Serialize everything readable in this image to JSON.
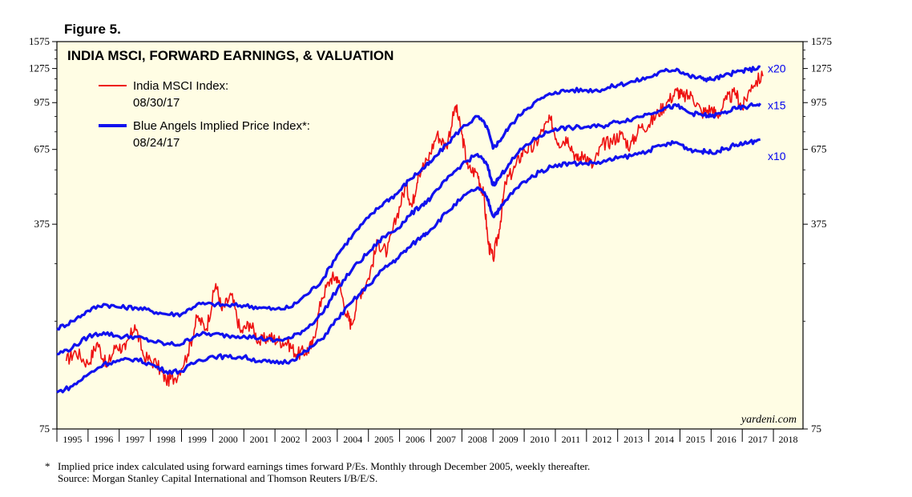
{
  "figure_label": "Figure 5.",
  "footnote_star": "*",
  "footnote_line1": "Implied price index calculated using forward earnings times forward P/Es. Monthly through December 2005, weekly thereafter.",
  "footnote_line2": "Source: Morgan Stanley Capital International and Thomson Reuters I/B/E/S.",
  "brand": "yardeni.com",
  "colors": {
    "background": "#fffde4",
    "india": "#ee1111",
    "blue": "#1111ee"
  },
  "chart_data": {
    "type": "line",
    "title": "INDIA MSCI, FORWARD EARNINGS, & VALUATION",
    "y_scale": "log",
    "ylim": [
      75,
      1575
    ],
    "y_ticks": [
      "75",
      "375",
      "675",
      "975",
      "1275",
      "1575"
    ],
    "y_tick_values": [
      75,
      375,
      675,
      975,
      1275,
      1575
    ],
    "xlim": [
      1995,
      2018.95
    ],
    "x_tick_labels": [
      "1995",
      "1996",
      "1997",
      "1998",
      "1999",
      "2000",
      "2001",
      "2002",
      "2003",
      "2004",
      "2005",
      "2006",
      "2007",
      "2008",
      "2009",
      "2010",
      "2011",
      "2012",
      "2013",
      "2014",
      "2015",
      "2016",
      "2017",
      "2018"
    ],
    "legend": [
      {
        "label": "India MSCI Index:",
        "date": "08/30/17",
        "color": "#ee1111"
      },
      {
        "label": "Blue Angels Implied Price Index*:",
        "date": "08/24/17",
        "color": "#1111ee"
      }
    ],
    "multiplier_labels": [
      {
        "label": "x20",
        "value": 1275
      },
      {
        "label": "x15",
        "value": 955
      },
      {
        "label": "x10",
        "value": 640
      }
    ],
    "series": [
      {
        "name": "India MSCI Index",
        "color": "#ee1111",
        "x": [
          1995.3,
          1995.6,
          1996.0,
          1996.3,
          1996.6,
          1996.9,
          1997.2,
          1997.5,
          1997.8,
          1998.2,
          1998.5,
          1998.8,
          1999.2,
          1999.5,
          1999.8,
          2000.1,
          2000.3,
          2000.6,
          2000.9,
          2001.2,
          2001.5,
          2001.8,
          2002.1,
          2002.4,
          2002.7,
          2003.0,
          2003.2,
          2003.5,
          2003.8,
          2004.0,
          2004.3,
          2004.45,
          2004.7,
          2005.0,
          2005.3,
          2005.6,
          2005.9,
          2006.2,
          2006.4,
          2006.6,
          2006.9,
          2007.2,
          2007.5,
          2007.8,
          2008.0,
          2008.2,
          2008.5,
          2008.7,
          2008.85,
          2009.0,
          2009.2,
          2009.4,
          2009.7,
          2010.0,
          2010.3,
          2010.6,
          2010.85,
          2011.1,
          2011.4,
          2011.7,
          2011.95,
          2012.2,
          2012.5,
          2012.8,
          2013.1,
          2013.4,
          2013.7,
          2014.0,
          2014.3,
          2014.6,
          2014.9,
          2015.1,
          2015.4,
          2015.7,
          2016.0,
          2016.2,
          2016.5,
          2016.8,
          2017.0,
          2017.3,
          2017.66
        ],
        "values": [
          128,
          138,
          125,
          148,
          122,
          145,
          140,
          170,
          132,
          125,
          110,
          112,
          135,
          180,
          165,
          235,
          190,
          215,
          160,
          172,
          148,
          155,
          150,
          148,
          135,
          138,
          145,
          210,
          245,
          248,
          185,
          170,
          215,
          245,
          325,
          300,
          395,
          510,
          430,
          560,
          620,
          760,
          690,
          950,
          760,
          580,
          560,
          470,
          320,
          285,
          360,
          520,
          585,
          675,
          680,
          790,
          850,
          710,
          740,
          620,
          650,
          590,
          700,
          720,
          760,
          690,
          800,
          820,
          900,
          980,
          1070,
          1020,
          1030,
          900,
          930,
          880,
          1000,
          1050,
          930,
          1120,
          1200
        ]
      },
      {
        "name": "Blue Angels Implied Price Index x20",
        "color": "#1111ee",
        "x": [
          1995.0,
          1995.5,
          1996.0,
          1996.5,
          1997.0,
          1997.5,
          1998.0,
          1998.5,
          1999.0,
          1999.5,
          2000.0,
          2000.5,
          2001.0,
          2001.5,
          2002.0,
          2002.5,
          2003.0,
          2003.5,
          2004.0,
          2004.5,
          2005.0,
          2005.5,
          2005.9,
          2006.3,
          2006.7,
          2007.0,
          2007.5,
          2008.0,
          2008.5,
          2008.8,
          2009.0,
          2009.2,
          2009.5,
          2010.0,
          2010.5,
          2011.0,
          2011.5,
          2012.0,
          2012.5,
          2013.0,
          2013.5,
          2014.0,
          2014.5,
          2014.9,
          2015.3,
          2015.7,
          2016.0,
          2016.4,
          2016.8,
          2017.2,
          2017.58
        ],
        "values": [
          165,
          175,
          190,
          200,
          195,
          195,
          190,
          185,
          185,
          200,
          200,
          198,
          198,
          195,
          192,
          195,
          215,
          240,
          295,
          345,
          395,
          445,
          475,
          530,
          575,
          610,
          700,
          800,
          875,
          810,
          680,
          720,
          800,
          920,
          1000,
          1060,
          1075,
          1075,
          1080,
          1120,
          1150,
          1190,
          1250,
          1270,
          1200,
          1180,
          1170,
          1200,
          1240,
          1260,
          1290
        ]
      },
      {
        "name": "Blue Angels Implied Price Index x15",
        "color": "#1111ee",
        "x": [
          1995.0,
          1995.5,
          1996.0,
          1996.5,
          1997.0,
          1997.5,
          1998.0,
          1998.5,
          1999.0,
          1999.5,
          2000.0,
          2000.5,
          2001.0,
          2001.5,
          2002.0,
          2002.5,
          2003.0,
          2003.5,
          2004.0,
          2004.5,
          2005.0,
          2005.5,
          2005.9,
          2006.3,
          2006.7,
          2007.0,
          2007.5,
          2008.0,
          2008.5,
          2008.8,
          2009.0,
          2009.2,
          2009.5,
          2010.0,
          2010.5,
          2011.0,
          2011.5,
          2012.0,
          2012.5,
          2013.0,
          2013.5,
          2014.0,
          2014.5,
          2014.9,
          2015.3,
          2015.7,
          2016.0,
          2016.4,
          2016.8,
          2017.2,
          2017.58
        ],
        "values": [
          135,
          142,
          155,
          160,
          155,
          155,
          150,
          146,
          146,
          158,
          158,
          156,
          156,
          153,
          150,
          153,
          165,
          185,
          225,
          265,
          300,
          340,
          360,
          400,
          435,
          460,
          530,
          600,
          650,
          600,
          510,
          540,
          600,
          690,
          750,
          795,
          800,
          805,
          810,
          840,
          860,
          895,
          935,
          950,
          900,
          885,
          875,
          900,
          930,
          945,
          970
        ]
      },
      {
        "name": "Blue Angels Implied Price Index x10",
        "color": "#1111ee",
        "x": [
          1995.0,
          1995.5,
          1996.0,
          1996.5,
          1997.0,
          1997.5,
          1998.0,
          1998.5,
          1999.0,
          1999.5,
          2000.0,
          2000.5,
          2001.0,
          2001.5,
          2002.0,
          2002.5,
          2003.0,
          2003.5,
          2004.0,
          2004.5,
          2005.0,
          2005.5,
          2005.9,
          2006.3,
          2006.7,
          2007.0,
          2007.5,
          2008.0,
          2008.5,
          2008.8,
          2009.0,
          2009.2,
          2009.5,
          2010.0,
          2010.5,
          2011.0,
          2011.5,
          2012.0,
          2012.5,
          2013.0,
          2013.5,
          2014.0,
          2014.5,
          2014.9,
          2015.3,
          2015.7,
          2016.0,
          2016.4,
          2016.8,
          2017.2,
          2017.58
        ],
        "values": [
          100,
          105,
          115,
          125,
          128,
          130,
          125,
          118,
          118,
          128,
          133,
          132,
          132,
          128,
          126,
          128,
          138,
          152,
          178,
          205,
          232,
          265,
          285,
          312,
          340,
          360,
          410,
          460,
          500,
          465,
          400,
          420,
          465,
          525,
          565,
          598,
          605,
          605,
          610,
          630,
          645,
          670,
          700,
          713,
          675,
          665,
          660,
          675,
          700,
          710,
          730
        ]
      }
    ]
  }
}
